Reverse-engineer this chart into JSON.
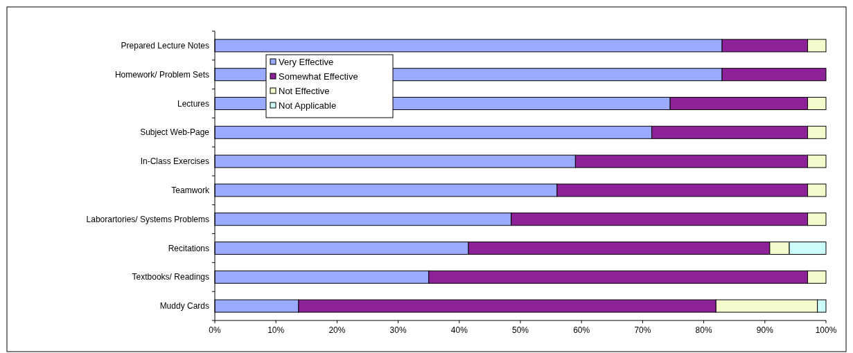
{
  "chart_data": {
    "type": "bar",
    "orientation": "horizontal",
    "stacked": true,
    "categories": [
      "Prepared Lecture Notes",
      "Homework/  Problem Sets",
      "Lectures",
      "Subject Web-Page",
      "In-Class Exercises",
      "Teamwork",
      "Laborartories/  Systems Problems",
      "Recitations",
      "Textbooks/  Readings",
      "Muddy Cards"
    ],
    "series": [
      {
        "name": "Very   Effective",
        "color": "#9aabff",
        "values": [
          83,
          83,
          74.5,
          71.5,
          59,
          56,
          48.5,
          41.5,
          35,
          13.7
        ]
      },
      {
        "name": "Somewhat  Effective",
        "color": "#8e2299",
        "values": [
          14,
          17,
          22.5,
          25.5,
          38,
          41,
          48.5,
          49.3,
          62,
          68.3
        ]
      },
      {
        "name": "Not   Effective",
        "color": "#f5fbcc",
        "values": [
          3,
          0,
          3,
          3,
          3,
          3,
          3,
          3.2,
          3,
          16.6
        ]
      },
      {
        "name": "Not   Applicable",
        "color": "#ccfcfa",
        "values": [
          0,
          0,
          0,
          0,
          0,
          0,
          0,
          6,
          0,
          1.4
        ]
      }
    ],
    "xlim": [
      0,
      100
    ],
    "xticks": [
      {
        "value": 0,
        "label": "0%"
      },
      {
        "value": 10,
        "label": "10%"
      },
      {
        "value": 20,
        "label": "20%"
      },
      {
        "value": 30,
        "label": "30%"
      },
      {
        "value": 40,
        "label": "40%"
      },
      {
        "value": 50,
        "label": "50%"
      },
      {
        "value": 60,
        "label": "60%"
      },
      {
        "value": 70,
        "label": "70%"
      },
      {
        "value": 80,
        "label": "80%"
      },
      {
        "value": 90,
        "label": "90%"
      },
      {
        "value": 100,
        "label": "100%"
      }
    ],
    "grid": false,
    "legend": "top left"
  }
}
